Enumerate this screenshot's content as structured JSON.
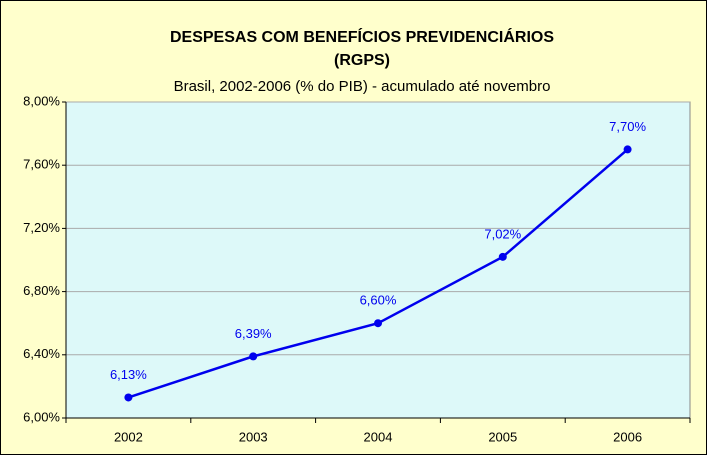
{
  "chart_data": {
    "type": "line",
    "title": [
      "DESPESAS COM BENEFÍCIOS PREVIDENCIÁRIOS",
      "(RGPS)"
    ],
    "subtitle": "Brasil, 2002-2006 (% do PIB) - acumulado até novembro",
    "categories": [
      "2002",
      "2003",
      "2004",
      "2005",
      "2006"
    ],
    "values": [
      6.13,
      6.39,
      6.6,
      7.02,
      7.7
    ],
    "value_labels": [
      "6,13%",
      "6,39%",
      "6,60%",
      "7,02%",
      "7,70%"
    ],
    "color": "#0000ee",
    "ylim": [
      6.0,
      8.0
    ],
    "yticks": [
      {
        "value": 6.0,
        "label": "6,00%"
      },
      {
        "value": 6.4,
        "label": "6,40%"
      },
      {
        "value": 6.8,
        "label": "6,80%"
      },
      {
        "value": 7.2,
        "label": "7,20%"
      },
      {
        "value": 7.6,
        "label": "7,60%"
      },
      {
        "value": 8.0,
        "label": "8,00%"
      }
    ],
    "grid": true
  }
}
